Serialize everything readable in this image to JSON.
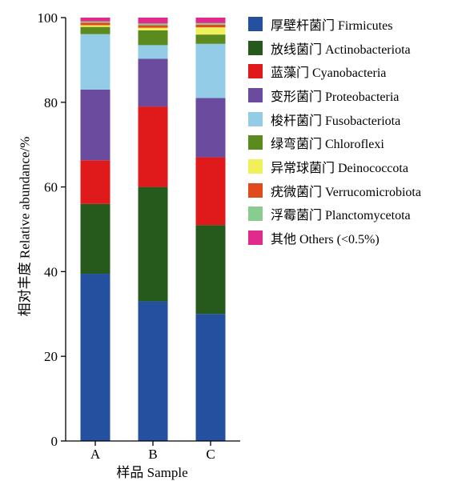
{
  "chart_data": {
    "type": "bar",
    "stacked": true,
    "categories": [
      "A",
      "B",
      "C"
    ],
    "xlabel": "样品 Sample",
    "ylabel": "相对丰度 Relative abundance/%",
    "ylim": [
      0,
      100
    ],
    "yticks": [
      0,
      20,
      40,
      60,
      80,
      100
    ],
    "legend_position": "right",
    "series": [
      {
        "name": "厚壁杆菌门 Firmicutes",
        "color": "#2550a0",
        "values": [
          39.5,
          33.0,
          30.0
        ]
      },
      {
        "name": "放线菌门 Actinobacteriota",
        "color": "#255a1c",
        "values": [
          16.5,
          27.0,
          21.0
        ]
      },
      {
        "name": "蓝藻门 Cyanobacteria",
        "color": "#e01a1a",
        "values": [
          10.3,
          19.0,
          16.0
        ]
      },
      {
        "name": "变形菌门 Proteobacteria",
        "color": "#6a4b9e",
        "values": [
          16.7,
          11.3,
          14.0
        ]
      },
      {
        "name": "梭杆菌门 Fusobacteriota",
        "color": "#92cce6",
        "values": [
          13.1,
          3.2,
          12.8
        ]
      },
      {
        "name": "绿弯菌门 Chloroflexi",
        "color": "#5b8a1e",
        "values": [
          1.7,
          3.5,
          2.2
        ]
      },
      {
        "name": "异常球菌门 Deinococcota",
        "color": "#f0f05a",
        "values": [
          0.4,
          0.6,
          1.7
        ]
      },
      {
        "name": "疣微菌门 Verrucomicrobiota",
        "color": "#e04b1e",
        "values": [
          0.6,
          0.6,
          0.6
        ]
      },
      {
        "name": "浮霉菌门 Planctomycetota",
        "color": "#88cc90",
        "values": [
          0.3,
          0.4,
          0.4
        ]
      },
      {
        "name": "其他 Others (<0.5%)",
        "color": "#e02a8c",
        "values": [
          0.9,
          1.4,
          1.3
        ]
      }
    ]
  }
}
